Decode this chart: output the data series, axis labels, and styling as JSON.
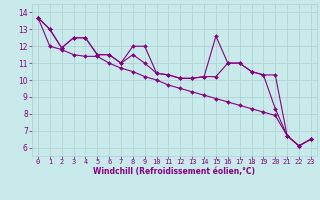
{
  "title": "",
  "xlabel": "Windchill (Refroidissement éolien,°C)",
  "ylabel": "",
  "bg_color": "#c8eaea",
  "line_color": "#880088",
  "grid_color": "#aad0d0",
  "xlim": [
    -0.5,
    23.5
  ],
  "ylim": [
    5.5,
    14.5
  ],
  "xticks": [
    0,
    1,
    2,
    3,
    4,
    5,
    6,
    7,
    8,
    9,
    10,
    11,
    12,
    13,
    14,
    15,
    16,
    17,
    18,
    19,
    20,
    21,
    22,
    23
  ],
  "yticks": [
    6,
    7,
    8,
    9,
    10,
    11,
    12,
    13,
    14
  ],
  "series": [
    [
      13.7,
      13.0,
      11.9,
      12.5,
      12.5,
      11.5,
      11.5,
      11.0,
      12.0,
      12.0,
      10.4,
      10.3,
      10.1,
      10.1,
      10.2,
      12.6,
      11.0,
      11.0,
      10.5,
      10.3,
      8.3,
      6.7,
      6.1,
      6.5
    ],
    [
      13.7,
      13.0,
      11.9,
      12.5,
      12.5,
      11.5,
      11.5,
      11.0,
      11.5,
      11.0,
      10.4,
      10.3,
      10.1,
      10.1,
      10.2,
      10.2,
      11.0,
      11.0,
      10.5,
      10.3,
      10.3,
      6.7,
      6.1,
      6.5
    ],
    [
      13.7,
      12.0,
      11.8,
      11.5,
      11.4,
      11.4,
      11.0,
      10.7,
      10.5,
      10.2,
      10.0,
      9.7,
      9.5,
      9.3,
      9.1,
      8.9,
      8.7,
      8.5,
      8.3,
      8.1,
      7.9,
      6.7,
      6.1,
      6.5
    ]
  ],
  "tick_fontsize": 5,
  "xlabel_fontsize": 5.5,
  "marker_size": 2.0,
  "line_width": 0.8
}
